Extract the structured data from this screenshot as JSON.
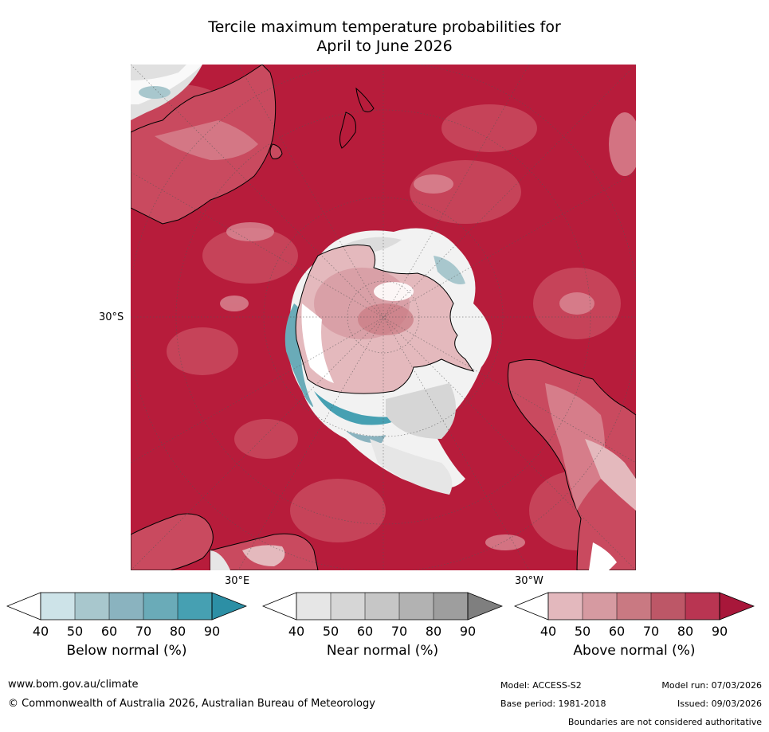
{
  "title": {
    "line1": "Tercile maximum temperature probabilities for",
    "line2": "April to June 2026"
  },
  "map": {
    "projection": "south-polar-stereographic",
    "latitude_label": "30°S",
    "longitude_labels": [
      "30°E",
      "30°W"
    ],
    "dominant_category": "above normal",
    "colors": {
      "ocean_above_90": "#b71c3b",
      "antarctica_core": "#e4b9bd",
      "coast": "#000000"
    }
  },
  "colorbars": [
    {
      "title": "Below normal (%)",
      "ticks": [
        "40",
        "50",
        "60",
        "70",
        "80",
        "90"
      ],
      "colors": [
        "#ffffff",
        "#cde3e8",
        "#a8c7cd",
        "#8ab3bf",
        "#6aabb8",
        "#46a0b2",
        "#2c8fa5"
      ]
    },
    {
      "title": "Near normal (%)",
      "ticks": [
        "40",
        "50",
        "60",
        "70",
        "80",
        "90"
      ],
      "colors": [
        "#ffffff",
        "#e6e6e6",
        "#d6d6d6",
        "#c6c6c6",
        "#b2b2b2",
        "#9e9e9e",
        "#7f7f7f"
      ]
    },
    {
      "title": "Above normal (%)",
      "ticks": [
        "40",
        "50",
        "60",
        "70",
        "80",
        "90"
      ],
      "colors": [
        "#ffffff",
        "#e3b8bd",
        "#d69aa1",
        "#c97982",
        "#bd5767",
        "#b93552",
        "#a8173a"
      ]
    }
  ],
  "footer": {
    "website": "www.bom.gov.au/climate",
    "copyright": "© Commonwealth of Australia 2026, Australian Bureau of Meteorology",
    "model": "Model: ACCESS-S2",
    "model_run": "Model run: 07/03/2026",
    "base_period": "Base period: 1981-2018",
    "issued": "Issued: 09/03/2026",
    "disclaimer": "Boundaries are not considered authoritative"
  }
}
